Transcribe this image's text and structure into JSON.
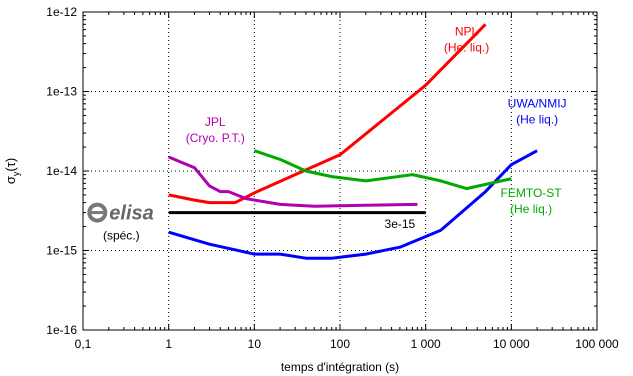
{
  "chart_data": {
    "type": "line",
    "xscale": "log",
    "yscale": "log",
    "xlim": [
      0.1,
      100000
    ],
    "ylim": [
      1e-16,
      1e-12
    ],
    "grid": true,
    "grid_style": "dotted",
    "xlabel": "temps d'intégration (s)",
    "ylabel": "σy(τ)",
    "xticks": [
      {
        "value": 0.1,
        "label": "0,1"
      },
      {
        "value": 1,
        "label": "1"
      },
      {
        "value": 10,
        "label": "10"
      },
      {
        "value": 100,
        "label": "100"
      },
      {
        "value": 1000,
        "label": "1 000"
      },
      {
        "value": 10000,
        "label": "10 000"
      },
      {
        "value": 100000,
        "label": "100 000"
      }
    ],
    "yticks": [
      {
        "value": 1e-16,
        "label": "1e-16"
      },
      {
        "value": 1e-15,
        "label": "1e-15"
      },
      {
        "value": 1e-14,
        "label": "1e-14"
      },
      {
        "value": 1e-13,
        "label": "1e-13"
      },
      {
        "value": 1e-12,
        "label": "1e-12"
      }
    ],
    "series": [
      {
        "key": "npl",
        "color": "#ff0000",
        "label_lines": [
          "NPL",
          "(He. liq.)"
        ],
        "label_at": [
          3000,
          4.5e-13
        ],
        "points": [
          [
            1,
            5e-15
          ],
          [
            2,
            4.3e-15
          ],
          [
            3,
            4e-15
          ],
          [
            6,
            4e-15
          ],
          [
            10,
            5.3e-15
          ],
          [
            30,
            9e-15
          ],
          [
            100,
            1.6e-14
          ],
          [
            1000,
            1.2e-13
          ],
          [
            5000,
            7e-13
          ]
        ]
      },
      {
        "key": "jpl",
        "color": "#b000b0",
        "label_lines": [
          "JPL",
          "(Cryo. P.T.)"
        ],
        "label_at": [
          3.5,
          3.3e-14
        ],
        "points": [
          [
            1,
            1.5e-14
          ],
          [
            2,
            1.1e-14
          ],
          [
            3,
            6.5e-15
          ],
          [
            4,
            5.5e-15
          ],
          [
            5,
            5.5e-15
          ],
          [
            8,
            4.5e-15
          ],
          [
            20,
            3.8e-15
          ],
          [
            50,
            3.6e-15
          ],
          [
            200,
            3.7e-15
          ],
          [
            800,
            3.8e-15
          ]
        ]
      },
      {
        "key": "uwa",
        "color": "#0000ff",
        "label_lines": [
          "UWA/NMIJ",
          "(He liq.)"
        ],
        "label_at": [
          20000,
          5.6e-14
        ],
        "points": [
          [
            1,
            1.7e-15
          ],
          [
            3,
            1.2e-15
          ],
          [
            10,
            9e-16
          ],
          [
            20,
            9e-16
          ],
          [
            40,
            8e-16
          ],
          [
            80,
            8e-16
          ],
          [
            200,
            9e-16
          ],
          [
            500,
            1.1e-15
          ],
          [
            1500,
            1.8e-15
          ],
          [
            5000,
            5.5e-15
          ],
          [
            10000,
            1.2e-14
          ],
          [
            20000,
            1.8e-14
          ]
        ]
      },
      {
        "key": "femto",
        "color": "#00aa00",
        "label_lines": [
          "FEMTO-ST",
          "(He liq.)"
        ],
        "label_at": [
          17000,
          4.2e-15
        ],
        "points": [
          [
            10,
            1.8e-14
          ],
          [
            20,
            1.4e-14
          ],
          [
            40,
            1e-14
          ],
          [
            80,
            8.5e-15
          ],
          [
            200,
            7.5e-15
          ],
          [
            700,
            9e-15
          ],
          [
            1500,
            7.5e-15
          ],
          [
            3000,
            6e-15
          ],
          [
            10000,
            8e-15
          ]
        ]
      },
      {
        "key": "lisa",
        "color": "#000000",
        "label_lines": [
          "(spéc.)"
        ],
        "label_at": [
          0.28,
          1.55e-15
        ],
        "annotation": "3e-15",
        "annotation_at": [
          500,
          2.15e-15
        ],
        "points": [
          [
            1,
            3e-15
          ],
          [
            1000,
            3e-15
          ]
        ]
      }
    ],
    "logo": {
      "text": "elisa",
      "at": [
        0.28,
        3e-15
      ]
    }
  }
}
